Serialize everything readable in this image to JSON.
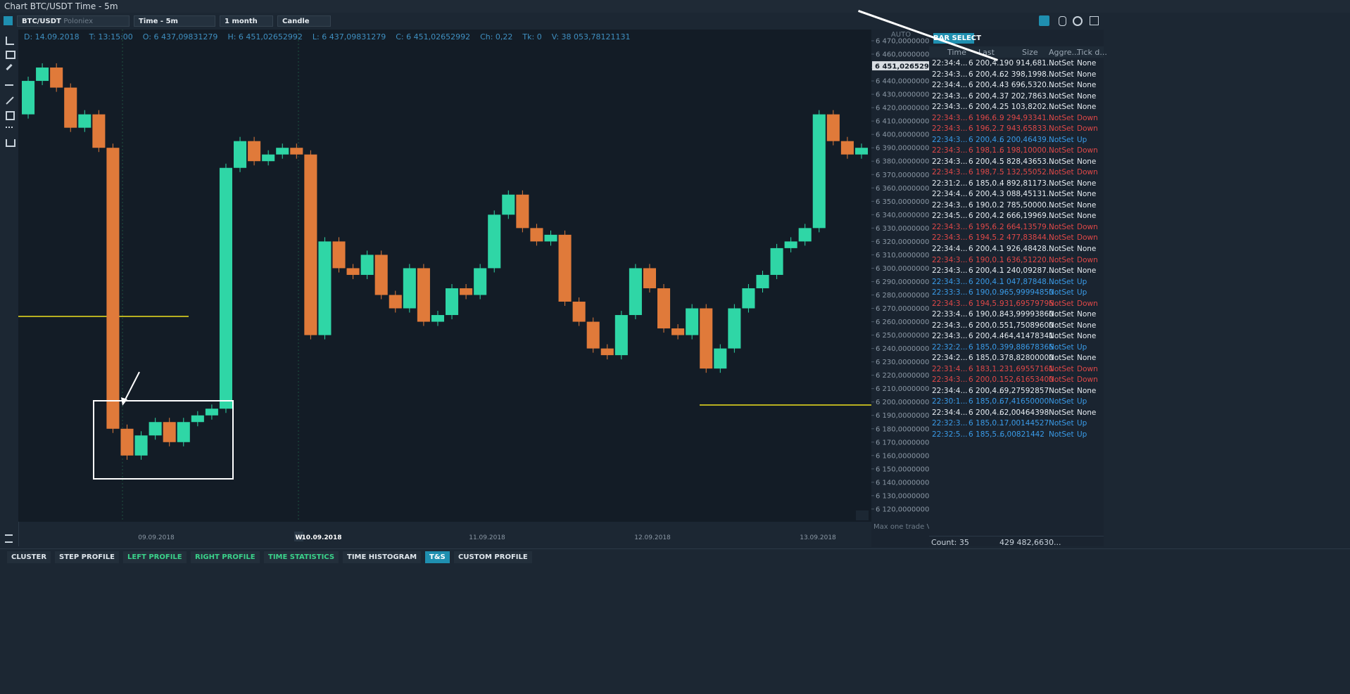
{
  "window": {
    "title": "Chart BTC/USDT Time - 5m"
  },
  "toolbar": {
    "symbol": "BTC/USDT",
    "exchange": "Poloniex",
    "timeframe": "Time - 5m",
    "period": "1 month",
    "chart_style": "Candle"
  },
  "info": [
    "D: 14.09.2018",
    "T: 13:15:00",
    "O: 6 437,09831279",
    "H: 6 451,02652992",
    "L: 6 437,09831279",
    "C: 6 451,02652992",
    "Ch: 0,22",
    "Tk: 0",
    "V: 38 053,78121131"
  ],
  "chart": {
    "type": "candlestick",
    "auto_label": "AUTO",
    "current_price_label": "6 451,02652992",
    "current_price": 6451.02652992,
    "footer_label": "Max one trade Vol.",
    "week_marker": "W",
    "ylim": [
      6110.5,
      6478.4
    ],
    "yticks": [
      {
        "value": 6470,
        "label": "6 470,00000000"
      },
      {
        "value": 6460,
        "label": "6 460,00000000"
      },
      {
        "value": 6450,
        "label": "6 450,00000000"
      },
      {
        "value": 6440,
        "label": "6 440,00000000"
      },
      {
        "value": 6430,
        "label": "6 430,00000000"
      },
      {
        "value": 6420,
        "label": "6 420,00000000"
      },
      {
        "value": 6410,
        "label": "6 410,00000000"
      },
      {
        "value": 6400,
        "label": "6 400,00000000"
      },
      {
        "value": 6390,
        "label": "6 390,00000000"
      },
      {
        "value": 6380,
        "label": "6 380,00000000"
      },
      {
        "value": 6370,
        "label": "6 370,00000000"
      },
      {
        "value": 6360,
        "label": "6 360,00000000"
      },
      {
        "value": 6350,
        "label": "6 350,00000000"
      },
      {
        "value": 6340,
        "label": "6 340,00000000"
      },
      {
        "value": 6330,
        "label": "6 330,00000000"
      },
      {
        "value": 6320,
        "label": "6 320,00000000"
      },
      {
        "value": 6310,
        "label": "6 310,00000000"
      },
      {
        "value": 6300,
        "label": "6 300,00000000"
      },
      {
        "value": 6290,
        "label": "6 290,00000000"
      },
      {
        "value": 6280,
        "label": "6 280,00000000"
      },
      {
        "value": 6270,
        "label": "6 270,00000000"
      },
      {
        "value": 6260,
        "label": "6 260,00000000"
      },
      {
        "value": 6250,
        "label": "6 250,00000000"
      },
      {
        "value": 6240,
        "label": "6 240,00000000"
      },
      {
        "value": 6230,
        "label": "6 230,00000000"
      },
      {
        "value": 6220,
        "label": "6 220,00000000"
      },
      {
        "value": 6210,
        "label": "6 210,00000000"
      },
      {
        "value": 6200,
        "label": "6 200,00000000"
      },
      {
        "value": 6190,
        "label": "6 190,00000000"
      },
      {
        "value": 6180,
        "label": "6 180,00000000"
      },
      {
        "value": 6170,
        "label": "6 170,00000000"
      },
      {
        "value": 6160,
        "label": "6 160,00000000"
      },
      {
        "value": 6150,
        "label": "6 150,00000000"
      },
      {
        "value": 6140,
        "label": "6 140,00000000"
      },
      {
        "value": 6130,
        "label": "6 130,00000000"
      },
      {
        "value": 6120,
        "label": "6 120,00000000"
      }
    ],
    "dates": [
      "09.09.2018",
      "10.09.2018",
      "11.09.2018",
      "12.09.2018",
      "13.09.2018"
    ],
    "closes": [
      6415,
      6440,
      6450,
      6435,
      6405,
      6415,
      6390,
      6180,
      6160,
      6175,
      6185,
      6170,
      6185,
      6190,
      6195,
      6375,
      6395,
      6380,
      6385,
      6390,
      6385,
      6250,
      6320,
      6300,
      6295,
      6310,
      6280,
      6270,
      6300,
      6260,
      6265,
      6285,
      6280,
      6300,
      6340,
      6355,
      6330,
      6320,
      6325,
      6275,
      6260,
      6240,
      6235,
      6265,
      6300,
      6285,
      6255,
      6250,
      6270,
      6225,
      6240,
      6270,
      6285,
      6295,
      6315,
      6320,
      6330,
      6415,
      6395,
      6385,
      6390
    ],
    "up_color": "#2fd6a6",
    "down_color": "#e07a3a"
  },
  "ts": {
    "button": "BAR SELECT",
    "columns": [
      "Time",
      "Last",
      "Size",
      "Aggre...",
      "Tick d..."
    ],
    "rows": [
      [
        "22:34:4...",
        "6 200,4...",
        "190 914,681...",
        "NotSet",
        "None"
      ],
      [
        "22:34:3...",
        "6 200,4...",
        "62 398,1998...",
        "NotSet",
        "None"
      ],
      [
        "22:34:4...",
        "6 200,4...",
        "43 696,5320...",
        "NotSet",
        "None"
      ],
      [
        "22:34:3...",
        "6 200,4...",
        "37 202,7863...",
        "NotSet",
        "None"
      ],
      [
        "22:34:3...",
        "6 200,4...",
        "25 103,8202...",
        "NotSet",
        "None"
      ],
      [
        "22:34:3...",
        "6 196,6...",
        "9 294,93341...",
        "NotSet",
        "Down"
      ],
      [
        "22:34:3...",
        "6 196,2...",
        "7 943,65833...",
        "NotSet",
        "Down"
      ],
      [
        "22:34:3...",
        "6 200,4...",
        "6 200,46439...",
        "NotSet",
        "Up"
      ],
      [
        "22:34:3...",
        "6 198,1...",
        "6 198,10000...",
        "NotSet",
        "Down"
      ],
      [
        "22:34:3...",
        "6 200,4...",
        "5 828,43653...",
        "NotSet",
        "None"
      ],
      [
        "22:34:3...",
        "6 198,7...",
        "5 132,55052...",
        "NotSet",
        "Down"
      ],
      [
        "22:31:2...",
        "6 185,0...",
        "4 892,81173...",
        "NotSet",
        "None"
      ],
      [
        "22:34:4...",
        "6 200,4...",
        "3 088,45131...",
        "NotSet",
        "None"
      ],
      [
        "22:34:3...",
        "6 190,0...",
        "2 785,50000...",
        "NotSet",
        "None"
      ],
      [
        "22:34:5...",
        "6 200,4...",
        "2 666,19969...",
        "NotSet",
        "None"
      ],
      [
        "22:34:3...",
        "6 195,6...",
        "2 664,13579...",
        "NotSet",
        "Down"
      ],
      [
        "22:34:3...",
        "6 194,5...",
        "2 477,83844...",
        "NotSet",
        "Down"
      ],
      [
        "22:34:4...",
        "6 200,4...",
        "1 926,48428...",
        "NotSet",
        "None"
      ],
      [
        "22:34:3...",
        "6 190,0...",
        "1 636,51220...",
        "NotSet",
        "Down"
      ],
      [
        "22:34:3...",
        "6 200,4...",
        "1 240,09287...",
        "NotSet",
        "None"
      ],
      [
        "22:34:3...",
        "6 200,4...",
        "1 047,87848...",
        "NotSet",
        "Up"
      ],
      [
        "22:33:3...",
        "6 190,0...",
        "965,99994850",
        "NotSet",
        "Up"
      ],
      [
        "22:34:3...",
        "6 194,5...",
        "931,69579795",
        "NotSet",
        "Down"
      ],
      [
        "22:33:4...",
        "6 190,0...",
        "843,99993860",
        "NotSet",
        "None"
      ],
      [
        "22:34:3...",
        "6 200,0...",
        "551,75089600",
        "NotSet",
        "None"
      ],
      [
        "22:34:3...",
        "6 200,4...",
        "464,41478341",
        "NotSet",
        "None"
      ],
      [
        "22:32:2...",
        "6 185,0...",
        "399,88678365",
        "NotSet",
        "Up"
      ],
      [
        "22:34:2...",
        "6 185,0...",
        "378,82800000",
        "NotSet",
        "None"
      ],
      [
        "22:31:4...",
        "6 183,1...",
        "231,69557161",
        "NotSet",
        "Down"
      ],
      [
        "22:34:3...",
        "6 200,0...",
        "152,61653400",
        "NotSet",
        "Down"
      ],
      [
        "22:34:4...",
        "6 200,4...",
        "69,27592857",
        "NotSet",
        "None"
      ],
      [
        "22:30:1...",
        "6 185,0...",
        "67,41650000",
        "NotSet",
        "Up"
      ],
      [
        "22:34:4...",
        "6 200,4...",
        "62,00464398",
        "NotSet",
        "None"
      ],
      [
        "22:32:3...",
        "6 185,0...",
        "17,00144527",
        "NotSet",
        "Up"
      ],
      [
        "22:32:5...",
        "6 185,5...",
        "6,00821442",
        "NotSet",
        "Up"
      ]
    ],
    "count_label": "Count:  35",
    "total": "429 482,6630..."
  },
  "tabs": [
    {
      "label": "CLUSTER",
      "style": "plain"
    },
    {
      "label": "STEP PROFILE",
      "style": "plain"
    },
    {
      "label": "LEFT PROFILE",
      "style": "green"
    },
    {
      "label": "RIGHT PROFILE",
      "style": "green"
    },
    {
      "label": "TIME STATISTICS",
      "style": "green"
    },
    {
      "label": "TIME HISTOGRAM",
      "style": "plain"
    },
    {
      "label": "T&S",
      "style": "active"
    },
    {
      "label": "CUSTOM PROFILE",
      "style": "plain"
    }
  ]
}
